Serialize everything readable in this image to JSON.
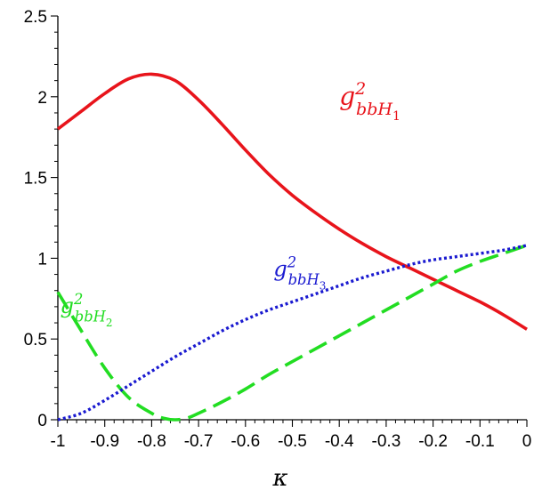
{
  "chart_data": {
    "type": "line",
    "title": "",
    "xlabel": "κ",
    "ylabel": "",
    "xlim": [
      -1,
      0
    ],
    "ylim": [
      0,
      2.5
    ],
    "x_ticks": [
      -1,
      -0.9,
      -0.8,
      -0.7,
      -0.6,
      -0.5,
      -0.4,
      -0.3,
      -0.2,
      -0.1,
      0
    ],
    "x_tick_labels": [
      "-1",
      "-0.9",
      "-0.8",
      "-0.7",
      "-0.6",
      "-0.5",
      "-0.4",
      "-0.3",
      "-0.2",
      "-0.1",
      "0"
    ],
    "y_ticks": [
      0,
      0.5,
      1,
      1.5,
      2,
      2.5
    ],
    "y_tick_labels": [
      "0",
      "0.5",
      "1",
      "1.5",
      "2",
      "2.5"
    ],
    "grid": false,
    "legend": "none",
    "series": [
      {
        "name": "g²bbH₁",
        "label": {
          "base": "g",
          "sup": "2",
          "sub": "bbH",
          "subsub": "1",
          "anchor": [
            -0.4,
            1.95
          ]
        },
        "color": "#e8141b",
        "style": "solid",
        "x": [
          -1,
          -0.95,
          -0.9,
          -0.85,
          -0.8,
          -0.75,
          -0.7,
          -0.65,
          -0.6,
          -0.55,
          -0.5,
          -0.45,
          -0.4,
          -0.35,
          -0.3,
          -0.25,
          -0.2,
          -0.15,
          -0.1,
          -0.05,
          0
        ],
        "y": [
          1.8,
          1.91,
          2.02,
          2.11,
          2.14,
          2.1,
          1.98,
          1.83,
          1.67,
          1.52,
          1.39,
          1.28,
          1.18,
          1.09,
          1.01,
          0.94,
          0.87,
          0.8,
          0.73,
          0.65,
          0.56
        ]
      },
      {
        "name": "g²bbH₂",
        "label": {
          "base": "g",
          "sup": "2",
          "sub": "bbH",
          "subsub": "2",
          "anchor": [
            -0.995,
            0.66
          ]
        },
        "color": "#22dd22",
        "style": "dashed",
        "x": [
          -1,
          -0.95,
          -0.9,
          -0.85,
          -0.8,
          -0.775,
          -0.75,
          -0.725,
          -0.7,
          -0.65,
          -0.6,
          -0.55,
          -0.5,
          -0.45,
          -0.4,
          -0.35,
          -0.3,
          -0.25,
          -0.2,
          -0.15,
          -0.1,
          -0.05,
          0
        ],
        "y": [
          0.79,
          0.55,
          0.32,
          0.14,
          0.04,
          0.01,
          0.0,
          0.01,
          0.04,
          0.11,
          0.19,
          0.28,
          0.36,
          0.44,
          0.52,
          0.6,
          0.68,
          0.76,
          0.84,
          0.92,
          0.98,
          1.03,
          1.08
        ]
      },
      {
        "name": "g²bbH₃",
        "label": {
          "base": "g",
          "sup": "2",
          "sub": "bbH",
          "subsub": "3",
          "anchor": [
            -0.54,
            0.89
          ]
        },
        "color": "#1a1ad0",
        "style": "dotted",
        "x": [
          -1,
          -0.95,
          -0.9,
          -0.85,
          -0.8,
          -0.75,
          -0.7,
          -0.65,
          -0.6,
          -0.55,
          -0.5,
          -0.45,
          -0.4,
          -0.35,
          -0.3,
          -0.25,
          -0.2,
          -0.15,
          -0.1,
          -0.05,
          0
        ],
        "y": [
          0.0,
          0.04,
          0.12,
          0.21,
          0.3,
          0.39,
          0.47,
          0.55,
          0.62,
          0.68,
          0.73,
          0.78,
          0.83,
          0.88,
          0.92,
          0.96,
          0.99,
          1.01,
          1.03,
          1.05,
          1.08
        ]
      }
    ]
  }
}
